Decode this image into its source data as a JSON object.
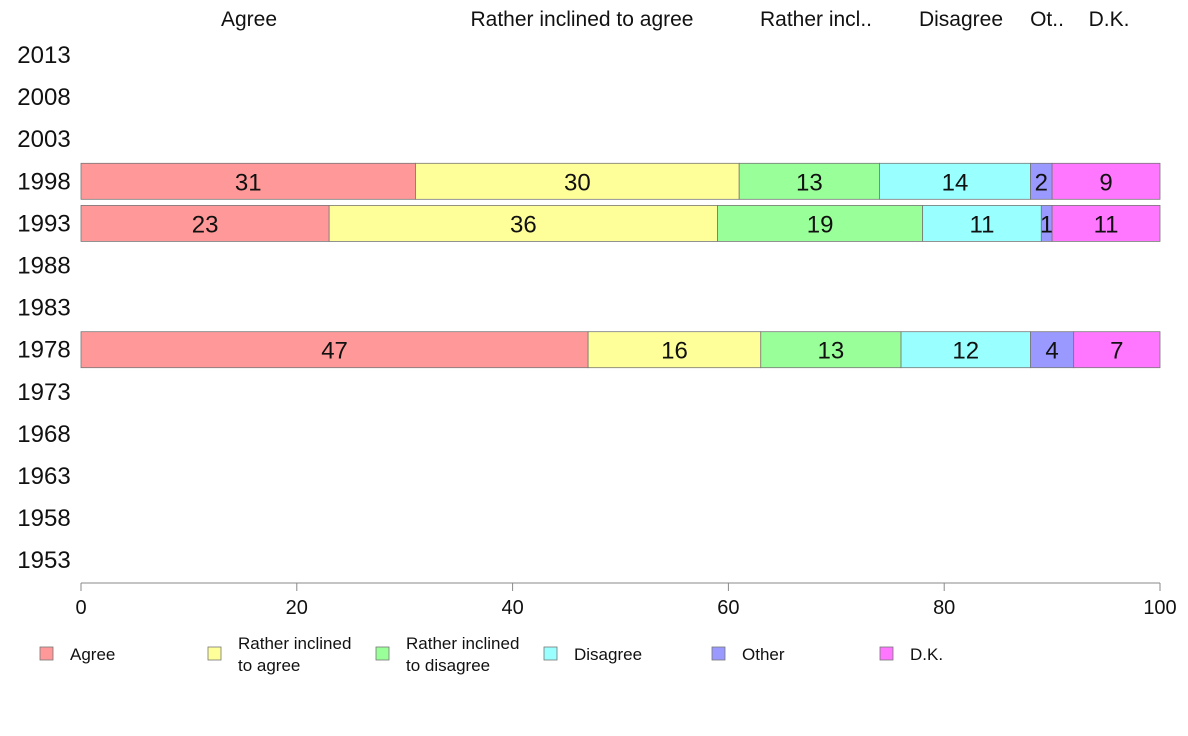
{
  "chart_data": {
    "type": "bar",
    "orientation": "horizontal",
    "stacked": true,
    "title": "",
    "xlabel": "",
    "ylabel": "",
    "xlim": [
      0,
      100
    ],
    "x_ticks": [
      0,
      20,
      40,
      60,
      80,
      100
    ],
    "grid": false,
    "legend_position": "bottom",
    "categories": [
      "2013",
      "2008",
      "2003",
      "1998",
      "1993",
      "1988",
      "1983",
      "1978",
      "1973",
      "1968",
      "1963",
      "1958",
      "1953"
    ],
    "top_labels": [
      "Agree",
      "Rather inclined to agree",
      "Rather incl..",
      "Disagree",
      "Ot..",
      "D.K."
    ],
    "series": [
      {
        "name": "Agree",
        "legend_lines": [
          "Agree"
        ],
        "color": "#ff9999",
        "values": [
          null,
          null,
          null,
          31,
          23,
          null,
          null,
          47,
          null,
          null,
          null,
          null,
          null
        ]
      },
      {
        "name": "Rather inclined to agree",
        "legend_lines": [
          "Rather inclined",
          "to agree"
        ],
        "color": "#ffff99",
        "values": [
          null,
          null,
          null,
          30,
          36,
          null,
          null,
          16,
          null,
          null,
          null,
          null,
          null
        ]
      },
      {
        "name": "Rather inclined to disagree",
        "legend_lines": [
          "Rather inclined",
          "to disagree"
        ],
        "color": "#99ff99",
        "values": [
          null,
          null,
          null,
          13,
          19,
          null,
          null,
          13,
          null,
          null,
          null,
          null,
          null
        ]
      },
      {
        "name": "Disagree",
        "legend_lines": [
          "Disagree"
        ],
        "color": "#99ffff",
        "values": [
          null,
          null,
          null,
          14,
          11,
          null,
          null,
          12,
          null,
          null,
          null,
          null,
          null
        ]
      },
      {
        "name": "Other",
        "legend_lines": [
          "Other"
        ],
        "color": "#9999ff",
        "values": [
          null,
          null,
          null,
          2,
          1,
          null,
          null,
          4,
          null,
          null,
          null,
          null,
          null
        ]
      },
      {
        "name": "D.K.",
        "legend_lines": [
          "D.K."
        ],
        "color": "#ff77ff",
        "values": [
          null,
          null,
          null,
          9,
          11,
          null,
          null,
          7,
          null,
          null,
          null,
          null,
          null
        ]
      }
    ]
  }
}
